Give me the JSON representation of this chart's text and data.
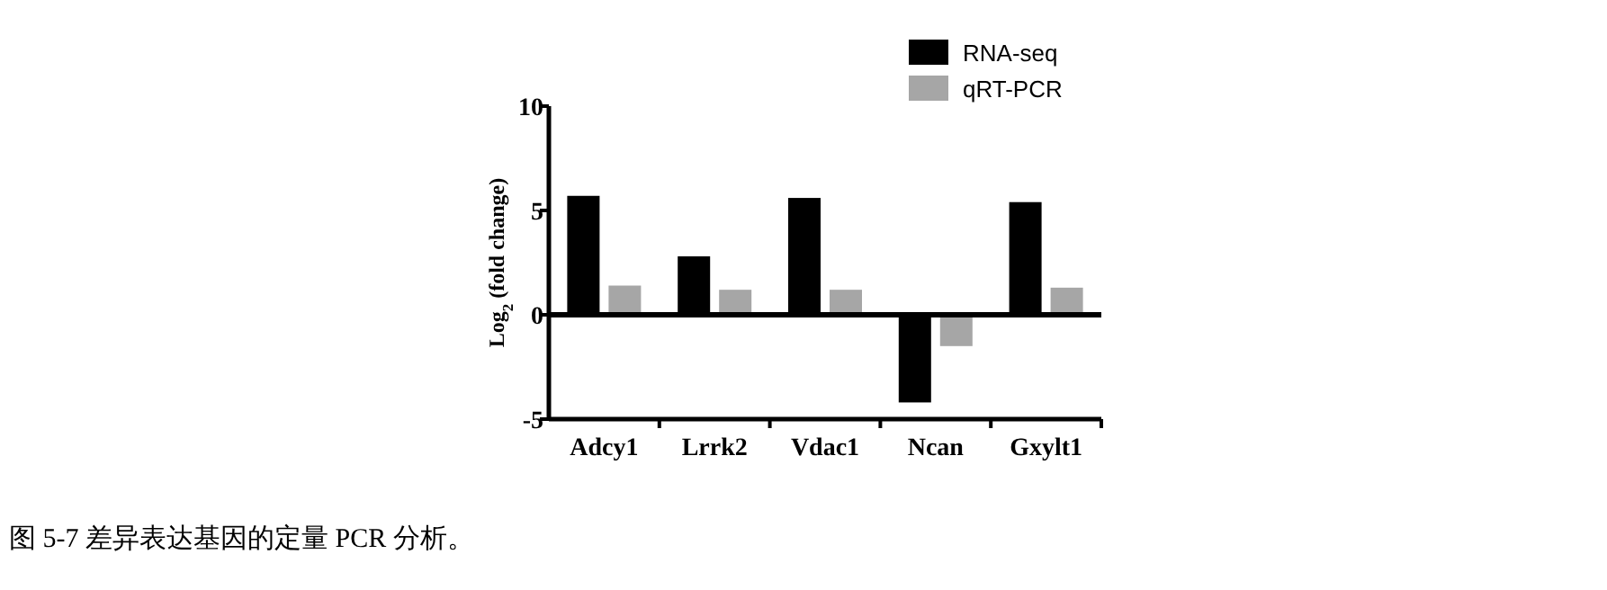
{
  "chart_data": {
    "type": "bar",
    "ylabel": "Log$_{2}$ (fold change)",
    "categories": [
      "Adcy1",
      "Lrrk2",
      "Vdac1",
      "Ncan",
      "Gxylt1"
    ],
    "series": [
      {
        "name": "RNA-seq",
        "color": "#000000",
        "values": [
          5.7,
          2.8,
          5.6,
          -4.2,
          5.4
        ]
      },
      {
        "name": "qRT-PCR",
        "color": "#a6a6a6",
        "values": [
          1.4,
          1.2,
          1.2,
          -1.5,
          1.3
        ]
      }
    ],
    "ylim": [
      -5,
      10
    ],
    "yticks": [
      -5,
      0,
      5,
      10
    ],
    "legend": "top right",
    "annotations": [
      "图 5-7  差异表达基因的定量 PCR 分析。"
    ]
  }
}
